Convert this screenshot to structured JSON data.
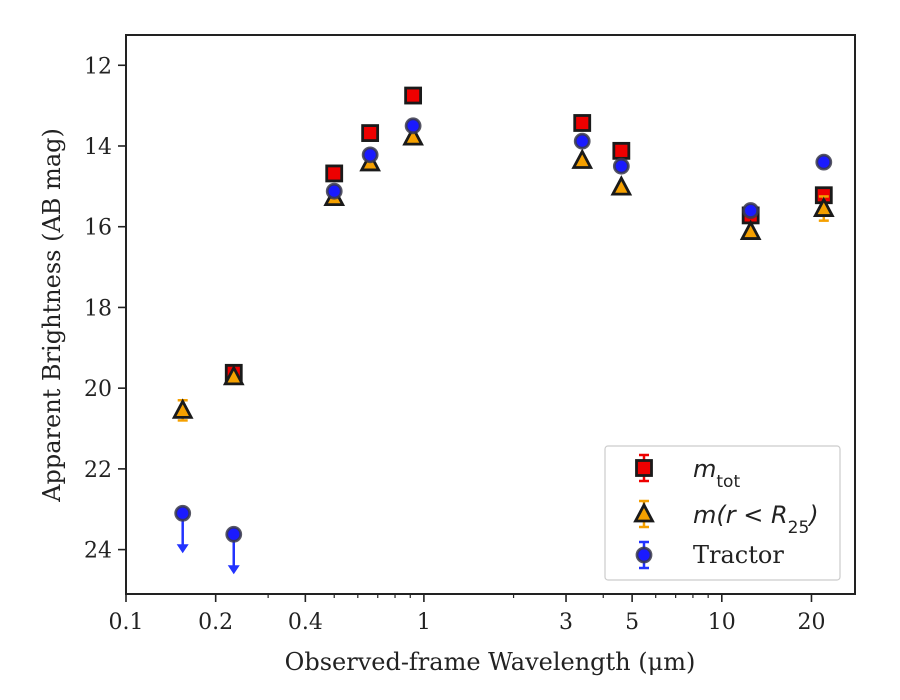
{
  "chart_data": {
    "type": "scatter",
    "xlabel": "Observed-frame Wavelength (μm)",
    "ylabel": "Apparent Brightness (AB mag)",
    "xscale": "log",
    "xlim": [
      0.1,
      28
    ],
    "ylim": [
      25.1,
      11.25
    ],
    "y_inverted": true,
    "x_ticks": [
      0.1,
      0.2,
      0.4,
      1,
      3,
      5,
      10,
      20
    ],
    "x_tick_labels": [
      "0.1",
      "0.2",
      "0.4",
      "1",
      "3",
      "5",
      "10",
      "20"
    ],
    "y_ticks": [
      12,
      14,
      16,
      18,
      20,
      22,
      24
    ],
    "y_tick_labels": [
      "12",
      "14",
      "16",
      "18",
      "20",
      "22",
      "24"
    ],
    "grid": false,
    "legend_position": "bottom-right",
    "series": [
      {
        "name": "m_tot",
        "legend_main": "m",
        "legend_sub": "tot",
        "marker": "square",
        "color": "#ee0000",
        "error_color": "#ee0000",
        "points": [
          {
            "x": 0.23,
            "y": 19.62
          },
          {
            "x": 0.5,
            "y": 14.68
          },
          {
            "x": 0.66,
            "y": 13.68
          },
          {
            "x": 0.92,
            "y": 12.75
          },
          {
            "x": 3.4,
            "y": 13.43
          },
          {
            "x": 4.6,
            "y": 14.12
          },
          {
            "x": 12.5,
            "y": 15.72
          },
          {
            "x": 22.0,
            "y": 15.22
          }
        ]
      },
      {
        "name": "m(r < R25)",
        "legend_main": "m(r < R",
        "legend_sub": "25",
        "legend_tail": ")",
        "marker": "triangle",
        "color": "#f5a000",
        "error_color": "#f5a000",
        "points": [
          {
            "x": 0.155,
            "y": 20.55,
            "err": 0.25
          },
          {
            "x": 0.23,
            "y": 19.72
          },
          {
            "x": 0.5,
            "y": 15.28
          },
          {
            "x": 0.66,
            "y": 14.42
          },
          {
            "x": 0.92,
            "y": 13.78
          },
          {
            "x": 3.4,
            "y": 14.36
          },
          {
            "x": 4.6,
            "y": 15.02
          },
          {
            "x": 12.5,
            "y": 16.12
          },
          {
            "x": 22.0,
            "y": 15.55,
            "err": 0.3
          }
        ]
      },
      {
        "name": "Tractor",
        "marker": "circle",
        "color": "#1a1aff",
        "error_color": "#2233ff",
        "points": [
          {
            "x": 0.155,
            "y": 23.1,
            "upper_limit": true
          },
          {
            "x": 0.23,
            "y": 23.62,
            "upper_limit": true
          },
          {
            "x": 0.5,
            "y": 15.12
          },
          {
            "x": 0.66,
            "y": 14.22
          },
          {
            "x": 0.92,
            "y": 13.5
          },
          {
            "x": 3.4,
            "y": 13.88
          },
          {
            "x": 4.6,
            "y": 14.5
          },
          {
            "x": 12.5,
            "y": 15.6
          },
          {
            "x": 22.0,
            "y": 14.4
          }
        ]
      }
    ]
  }
}
